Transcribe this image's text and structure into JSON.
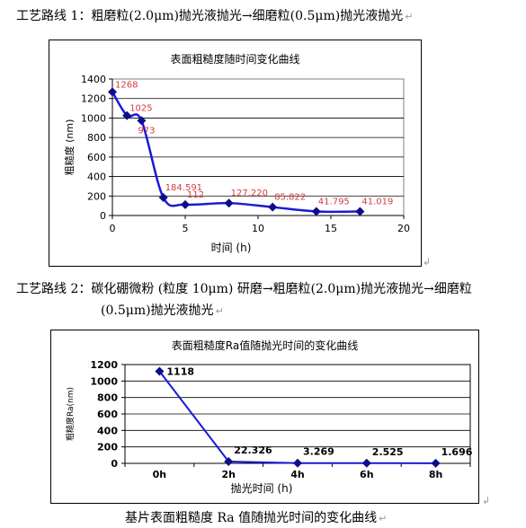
{
  "doc": {
    "route1_text": "工艺路线 1：粗磨粒(2.0μm)抛光液抛光→细磨粒(0.5μm)抛光液抛光",
    "route2_line1": "工艺路线 2：碳化硼微粉 (粒度 10μm) 研磨→粗磨粒(2.0μm)抛光液抛光→细磨粒",
    "route2_line2": "(0.5μm)抛光液抛光",
    "caption": "基片表面粗糙度 Ra 值随抛光时间的变化曲线",
    "para_mark": "↵",
    "anchor_mark": "↲"
  },
  "chart_data": [
    {
      "type": "line",
      "title": "表面粗糙度随时间变化曲线",
      "xlabel": "时间 (h)",
      "ylabel": "粗糙度 (nm)",
      "xlim": [
        0,
        20
      ],
      "ylim": [
        0,
        1400
      ],
      "x_ticks": [
        0,
        5,
        10,
        15,
        20
      ],
      "y_ticks": [
        0,
        200,
        400,
        600,
        800,
        1000,
        1200,
        1400
      ],
      "grid": true,
      "x": [
        0,
        1,
        2,
        3.5,
        5,
        8,
        11,
        14,
        17
      ],
      "values": [
        1268,
        1025,
        973,
        184.591,
        112,
        127.22,
        85.822,
        41.795,
        41.019
      ],
      "labels": [
        "1268",
        "1025",
        "973",
        "184.591",
        "112",
        "127.220",
        "85.822",
        "41.795",
        "41.019"
      ],
      "colors": {
        "line": "#1a1ad6",
        "marker": "#0d0d8c",
        "label": "#d23c3c",
        "plot_bg": "#ffffff"
      }
    },
    {
      "type": "line",
      "title": "表面粗糙度Ra值随抛光时间的变化曲线",
      "xlabel": "抛光时间 (h)",
      "ylabel": "粗糙度Ra(nm)",
      "ylim": [
        0,
        1200
      ],
      "y_ticks": [
        0,
        200,
        400,
        600,
        800,
        1000,
        1200
      ],
      "grid": true,
      "categories": [
        "0h",
        "2h",
        "4h",
        "6h",
        "8h"
      ],
      "values": [
        1118,
        22.326,
        3.269,
        2.525,
        1.696
      ],
      "labels": [
        "1118",
        "22.326",
        "3.269",
        "2.525",
        "1.696"
      ],
      "colors": {
        "line": "#1a1ad6",
        "marker": "#0d0d8c",
        "label": "#000000",
        "plot_bg": "#ffffff"
      }
    }
  ]
}
